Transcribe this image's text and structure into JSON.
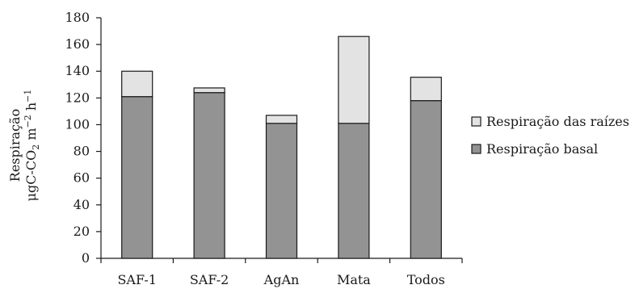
{
  "chart_data": {
    "type": "bar",
    "stacked": true,
    "categories": [
      "SAF-1",
      "SAF-2",
      "AgAn",
      "Mata",
      "Todos"
    ],
    "series": [
      {
        "name": "Respiração basal",
        "color": "#939393",
        "values": [
          121,
          124,
          101,
          101,
          118
        ]
      },
      {
        "name": "Respiração das raízes",
        "color": "#e3e3e3",
        "values": [
          19,
          3.5,
          6,
          65,
          17.5
        ]
      }
    ],
    "ylim": [
      0,
      180
    ],
    "yticks": [
      "0",
      "20",
      "40",
      "60",
      "80",
      "100",
      "120",
      "140",
      "160",
      "180"
    ],
    "ylabel": {
      "line1": "Respiração",
      "line2_main": "μgC-CO",
      "line2_sub": "2",
      "line2_mid": " m",
      "line2_sup1": "−2",
      "line2_end": " h",
      "line2_sup2": "−1"
    },
    "legend_order": [
      "Respiração das raízes",
      "Respiração basal"
    ],
    "legend_position": "right",
    "grid": false
  }
}
